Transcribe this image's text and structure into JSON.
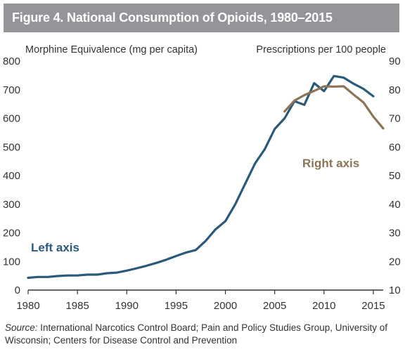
{
  "title": "Figure 4. National Consumption of Opioids, 1980–2015",
  "source": {
    "label": "Source:",
    "text": "International Narcotics Control Board; Pain and Policy Studies Group, University of Wisconsin; Centers for Disease Control and Prevention"
  },
  "colors": {
    "left_series": "#2a5a7a",
    "right_series": "#8c7456",
    "title_bg": "#939598",
    "axis": "#333333"
  },
  "chart_data": {
    "type": "line",
    "title": "Figure 4. National Consumption of Opioids, 1980–2015",
    "left_axis": {
      "label": "Morphine Equivalence (mg per capita)",
      "ylim": [
        0,
        800
      ],
      "ticks": [
        0,
        100,
        200,
        300,
        400,
        500,
        600,
        700,
        800
      ]
    },
    "right_axis": {
      "label": "Prescriptions per 100 people",
      "ylim": [
        10,
        90
      ],
      "ticks": [
        10,
        20,
        30,
        40,
        50,
        60,
        70,
        80,
        90
      ]
    },
    "x_axis": {
      "xlim": [
        1980,
        2016
      ],
      "ticks": [
        1980,
        1985,
        1990,
        1995,
        2000,
        2005,
        2010,
        2015
      ]
    },
    "grid": false,
    "series": [
      {
        "name": "Left axis",
        "axis": "left",
        "x": [
          1980,
          1981,
          1982,
          1983,
          1984,
          1985,
          1986,
          1987,
          1988,
          1989,
          1990,
          1991,
          1992,
          1993,
          1994,
          1995,
          1996,
          1997,
          1998,
          1999,
          2000,
          2001,
          2002,
          2003,
          2004,
          2005,
          2006,
          2007,
          2008,
          2009,
          2010,
          2011,
          2012,
          2013,
          2014,
          2015
        ],
        "values": [
          43,
          46,
          46,
          49,
          51,
          51,
          54,
          54,
          59,
          61,
          68,
          76,
          85,
          95,
          106,
          119,
          131,
          140,
          172,
          212,
          241,
          300,
          371,
          442,
          493,
          563,
          600,
          660,
          647,
          723,
          695,
          748,
          742,
          721,
          703,
          677
        ]
      },
      {
        "name": "Right axis",
        "axis": "right",
        "x": [
          2006,
          2007,
          2008,
          2009,
          2010,
          2011,
          2012,
          2013,
          2014,
          2015,
          2016
        ],
        "values": [
          72.4,
          76.2,
          78.1,
          79.6,
          81.2,
          81.1,
          81.2,
          78.3,
          75.6,
          70.6,
          66.5
        ]
      }
    ]
  }
}
